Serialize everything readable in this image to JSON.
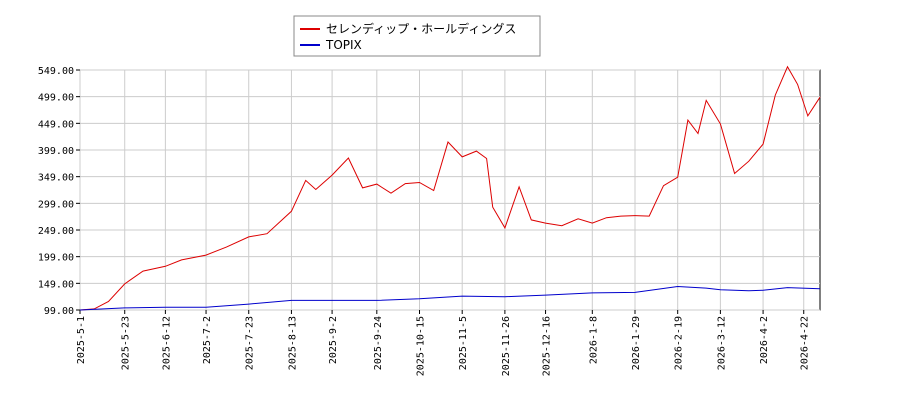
{
  "chart_data": {
    "type": "line",
    "legend": {
      "placement": "top-center"
    },
    "grid": true,
    "ylim": [
      99,
      549
    ],
    "y_ticks": [
      "549.00",
      "499.00",
      "449.00",
      "399.00",
      "349.00",
      "299.00",
      "249.00",
      "199.00",
      "149.00",
      "99.00"
    ],
    "x_ticks": [
      "2025-5-1",
      "2025-5-23",
      "2025-6-12",
      "2025-7-2",
      "2025-7-23",
      "2025-8-13",
      "2025-9-2",
      "2025-9-24",
      "2025-10-15",
      "2025-11-5",
      "2025-11-26",
      "2025-12-16",
      "2026-1-8",
      "2026-1-29",
      "2026-2-19",
      "2026-3-12",
      "2026-4-2",
      "2026-4-22"
    ],
    "series": [
      {
        "name": "セレンディップ・ホールディングス",
        "color": "#dd0000",
        "points": [
          [
            "2025-5-1",
            99
          ],
          [
            "2025-5-8",
            101
          ],
          [
            "2025-5-15",
            115
          ],
          [
            "2025-5-23",
            148
          ],
          [
            "2025-6-1",
            172
          ],
          [
            "2025-6-12",
            181
          ],
          [
            "2025-6-20",
            193
          ],
          [
            "2025-7-2",
            202
          ],
          [
            "2025-7-12",
            217
          ],
          [
            "2025-7-23",
            236
          ],
          [
            "2025-8-1",
            242
          ],
          [
            "2025-8-13",
            284
          ],
          [
            "2025-8-20",
            342
          ],
          [
            "2025-8-25",
            325
          ],
          [
            "2025-9-2",
            352
          ],
          [
            "2025-9-10",
            384
          ],
          [
            "2025-9-17",
            328
          ],
          [
            "2025-9-24",
            335
          ],
          [
            "2025-10-1",
            318
          ],
          [
            "2025-10-8",
            336
          ],
          [
            "2025-10-15",
            338
          ],
          [
            "2025-10-22",
            323
          ],
          [
            "2025-10-29",
            414
          ],
          [
            "2025-11-5",
            386
          ],
          [
            "2025-11-12",
            397
          ],
          [
            "2025-11-17",
            383
          ],
          [
            "2025-11-20",
            292
          ],
          [
            "2025-11-26",
            253
          ],
          [
            "2025-12-3",
            330
          ],
          [
            "2025-12-9",
            268
          ],
          [
            "2025-12-16",
            262
          ],
          [
            "2025-12-24",
            257
          ],
          [
            "2026-1-1",
            270
          ],
          [
            "2026-1-8",
            262
          ],
          [
            "2026-1-15",
            272
          ],
          [
            "2026-1-22",
            275
          ],
          [
            "2026-1-29",
            276
          ],
          [
            "2026-2-5",
            275
          ],
          [
            "2026-2-12",
            332
          ],
          [
            "2026-2-19",
            348
          ],
          [
            "2026-2-24",
            455
          ],
          [
            "2026-3-1",
            430
          ],
          [
            "2026-3-5",
            492
          ],
          [
            "2026-3-12",
            448
          ],
          [
            "2026-3-19",
            355
          ],
          [
            "2026-3-26",
            378
          ],
          [
            "2026-4-2",
            410
          ],
          [
            "2026-4-8",
            502
          ],
          [
            "2026-4-14",
            555
          ],
          [
            "2026-4-19",
            522
          ],
          [
            "2026-4-24",
            463
          ],
          [
            "2026-4-30",
            498
          ]
        ]
      },
      {
        "name": "TOPIX",
        "color": "#0000cc",
        "points": [
          [
            "2025-5-1",
            99
          ],
          [
            "2025-5-23",
            103
          ],
          [
            "2025-6-12",
            104
          ],
          [
            "2025-7-2",
            104
          ],
          [
            "2025-7-23",
            110
          ],
          [
            "2025-8-13",
            117
          ],
          [
            "2025-9-2",
            117
          ],
          [
            "2025-9-24",
            117
          ],
          [
            "2025-10-15",
            120
          ],
          [
            "2025-11-5",
            125
          ],
          [
            "2025-11-26",
            124
          ],
          [
            "2025-12-16",
            127
          ],
          [
            "2026-1-8",
            131
          ],
          [
            "2026-1-29",
            132
          ],
          [
            "2026-2-19",
            143
          ],
          [
            "2026-3-5",
            140
          ],
          [
            "2026-3-12",
            137
          ],
          [
            "2026-3-26",
            135
          ],
          [
            "2026-4-2",
            136
          ],
          [
            "2026-4-14",
            141
          ],
          [
            "2026-4-30",
            139
          ]
        ]
      }
    ]
  }
}
